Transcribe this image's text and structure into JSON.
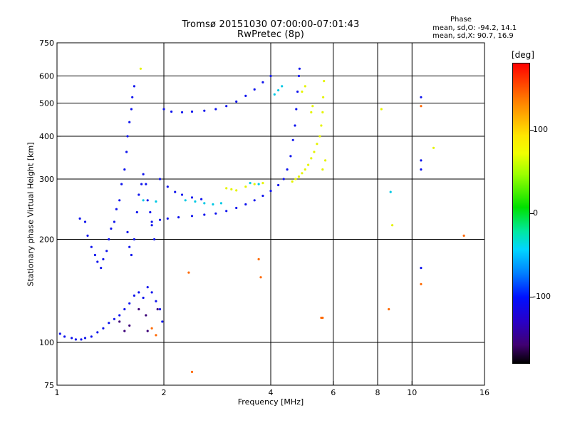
{
  "title": {
    "line1": "Tromsø 20151030 07:00:00-07:01:43",
    "line2": "RwPretec (8p)"
  },
  "phase_info": {
    "heading": "Phase",
    "o_line": "mean, sd,O:  -94.2, 14.1",
    "x_line": "mean, sd,X:  90.7, 16.9"
  },
  "colorbar": {
    "title": "[deg]",
    "ticks": [
      {
        "value": 100,
        "label": "100"
      },
      {
        "value": 0,
        "label": "0"
      },
      {
        "value": -100,
        "label": "-100"
      }
    ]
  },
  "chart_data": {
    "type": "scatter",
    "xlabel": "Frequency [MHz]",
    "ylabel": "Stationary phase Virtual Height [km]",
    "x_scale": "log",
    "y_scale": "log",
    "xlim": [
      1,
      16
    ],
    "ylim": [
      75,
      750
    ],
    "x_ticks": [
      1,
      2,
      4,
      6,
      8,
      10,
      16
    ],
    "y_ticks": [
      75,
      100,
      200,
      300,
      400,
      500,
      600,
      750
    ],
    "x_grid_lines": [
      2,
      4,
      6,
      8,
      10
    ],
    "y_grid_lines": [
      100,
      200,
      300,
      400,
      500,
      600
    ],
    "color_scale": "phase [deg], approx -180 to 180",
    "series": [
      {
        "color_phase": -100,
        "points": [
          [
            1.02,
            106
          ],
          [
            1.05,
            104
          ],
          [
            1.1,
            103
          ],
          [
            1.13,
            102
          ],
          [
            1.17,
            102
          ],
          [
            1.2,
            103
          ],
          [
            1.25,
            104
          ],
          [
            1.3,
            107
          ],
          [
            1.35,
            110
          ],
          [
            1.4,
            114
          ],
          [
            1.45,
            117
          ],
          [
            1.5,
            120
          ],
          [
            1.55,
            125
          ],
          [
            1.6,
            130
          ],
          [
            1.65,
            137
          ],
          [
            1.7,
            140
          ],
          [
            1.75,
            135
          ],
          [
            1.8,
            145
          ],
          [
            1.85,
            140
          ],
          [
            1.9,
            132
          ],
          [
            1.95,
            125
          ],
          [
            1.98,
            115
          ],
          [
            1.22,
            205
          ],
          [
            1.25,
            190
          ],
          [
            1.28,
            180
          ],
          [
            1.3,
            172
          ],
          [
            1.33,
            165
          ],
          [
            1.35,
            175
          ],
          [
            1.38,
            185
          ],
          [
            1.4,
            200
          ],
          [
            1.42,
            215
          ],
          [
            1.45,
            225
          ],
          [
            1.47,
            245
          ],
          [
            1.5,
            260
          ],
          [
            1.52,
            290
          ],
          [
            1.55,
            320
          ],
          [
            1.57,
            360
          ],
          [
            1.58,
            400
          ],
          [
            1.6,
            440
          ],
          [
            1.62,
            480
          ],
          [
            1.63,
            520
          ],
          [
            1.65,
            560
          ],
          [
            1.58,
            210
          ],
          [
            1.6,
            190
          ],
          [
            1.62,
            180
          ],
          [
            1.65,
            200
          ],
          [
            1.68,
            240
          ],
          [
            1.7,
            270
          ],
          [
            1.73,
            290
          ],
          [
            1.75,
            310
          ],
          [
            1.78,
            290
          ],
          [
            1.8,
            260
          ],
          [
            1.83,
            240
          ],
          [
            1.85,
            220
          ],
          [
            1.88,
            200
          ],
          [
            1.16,
            230
          ],
          [
            1.2,
            225
          ],
          [
            1.85,
            225
          ],
          [
            1.95,
            228
          ],
          [
            2.05,
            230
          ],
          [
            2.2,
            232
          ],
          [
            2.4,
            234
          ],
          [
            2.6,
            236
          ],
          [
            2.8,
            238
          ],
          [
            3.0,
            242
          ],
          [
            3.2,
            247
          ],
          [
            3.4,
            253
          ],
          [
            3.6,
            260
          ],
          [
            3.8,
            268
          ],
          [
            4.0,
            277
          ],
          [
            4.2,
            288
          ],
          [
            4.35,
            300
          ],
          [
            4.45,
            320
          ],
          [
            4.55,
            350
          ],
          [
            4.62,
            390
          ],
          [
            4.68,
            430
          ],
          [
            4.72,
            480
          ],
          [
            4.76,
            540
          ],
          [
            4.8,
            600
          ],
          [
            4.82,
            630
          ],
          [
            2.0,
            480
          ],
          [
            2.1,
            472
          ],
          [
            2.25,
            470
          ],
          [
            2.4,
            472
          ],
          [
            2.6,
            475
          ],
          [
            2.8,
            480
          ],
          [
            3.0,
            490
          ],
          [
            3.2,
            505
          ],
          [
            3.4,
            525
          ],
          [
            3.6,
            548
          ],
          [
            3.8,
            575
          ],
          [
            4.0,
            600
          ],
          [
            1.95,
            300
          ],
          [
            2.05,
            285
          ],
          [
            2.15,
            275
          ],
          [
            2.25,
            270
          ],
          [
            2.4,
            265
          ],
          [
            2.55,
            262
          ],
          [
            10.6,
            520
          ],
          [
            10.6,
            340
          ],
          [
            10.6,
            320
          ],
          [
            10.6,
            165
          ]
        ]
      },
      {
        "color_phase": -30,
        "points": [
          [
            2.3,
            260
          ],
          [
            2.45,
            258
          ],
          [
            2.6,
            255
          ],
          [
            2.75,
            253
          ],
          [
            2.9,
            255
          ],
          [
            3.5,
            292
          ],
          [
            3.7,
            290
          ],
          [
            4.1,
            530
          ],
          [
            4.2,
            545
          ],
          [
            4.3,
            560
          ],
          [
            8.7,
            275
          ],
          [
            1.75,
            260
          ],
          [
            1.9,
            258
          ]
        ]
      },
      {
        "color_phase": 90,
        "points": [
          [
            3.0,
            282
          ],
          [
            3.1,
            280
          ],
          [
            3.2,
            278
          ],
          [
            3.4,
            285
          ],
          [
            3.6,
            290
          ],
          [
            3.8,
            292
          ],
          [
            4.6,
            295
          ],
          [
            4.7,
            300
          ],
          [
            4.8,
            305
          ],
          [
            4.9,
            312
          ],
          [
            5.0,
            320
          ],
          [
            5.1,
            330
          ],
          [
            5.2,
            345
          ],
          [
            5.3,
            360
          ],
          [
            5.4,
            380
          ],
          [
            5.5,
            400
          ],
          [
            5.55,
            430
          ],
          [
            5.6,
            470
          ],
          [
            5.62,
            520
          ],
          [
            5.65,
            580
          ],
          [
            5.2,
            470
          ],
          [
            5.25,
            490
          ],
          [
            4.9,
            540
          ],
          [
            5.0,
            560
          ],
          [
            5.6,
            320
          ],
          [
            5.7,
            340
          ],
          [
            1.72,
            630
          ],
          [
            8.2,
            480
          ],
          [
            8.8,
            220
          ],
          [
            11.5,
            370
          ]
        ]
      },
      {
        "color_phase": 150,
        "points": [
          [
            5.55,
            118
          ],
          [
            5.6,
            118
          ],
          [
            2.4,
            82
          ],
          [
            3.7,
            175
          ],
          [
            3.75,
            155
          ],
          [
            1.85,
            110
          ],
          [
            1.9,
            105
          ],
          [
            14.0,
            205
          ],
          [
            8.6,
            125
          ],
          [
            10.6,
            148
          ],
          [
            2.35,
            160
          ],
          [
            10.6,
            490
          ]
        ]
      },
      {
        "color_phase": -150,
        "points": [
          [
            1.5,
            115
          ],
          [
            1.55,
            108
          ],
          [
            1.6,
            112
          ],
          [
            1.7,
            125
          ],
          [
            1.78,
            120
          ],
          [
            1.8,
            108
          ],
          [
            1.92,
            125
          ]
        ]
      }
    ]
  }
}
